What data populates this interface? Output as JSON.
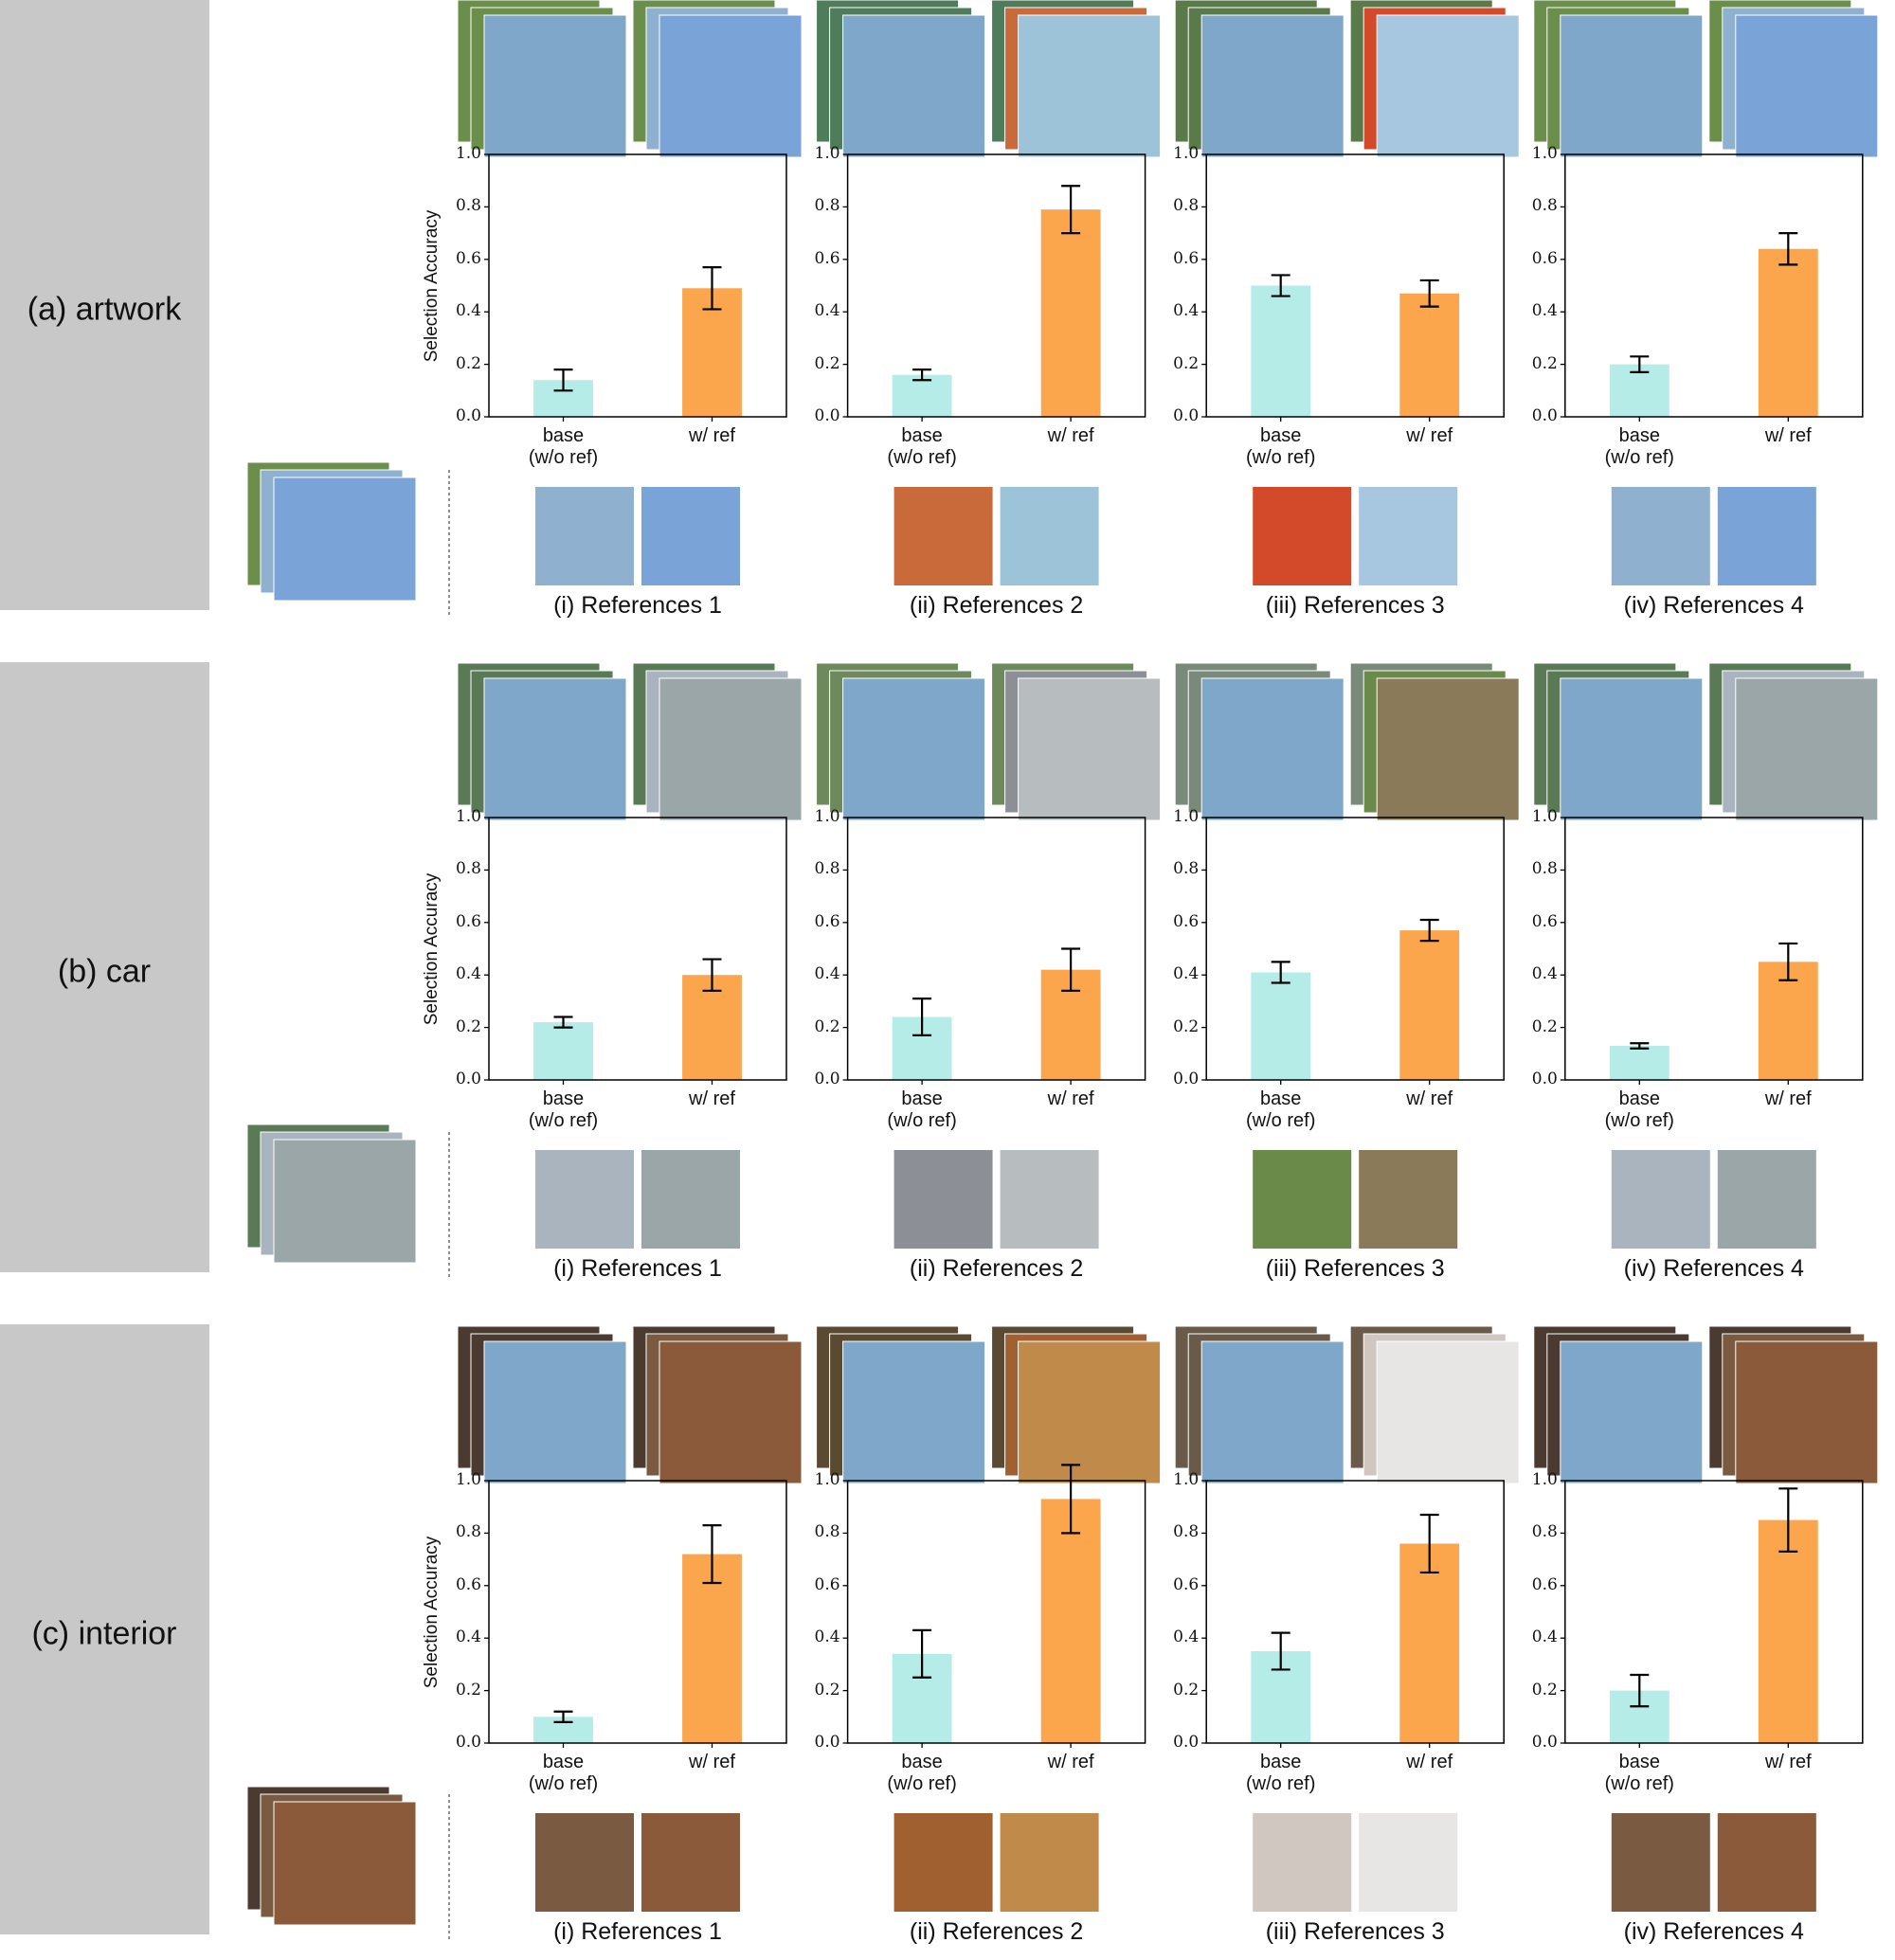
{
  "rows": [
    {
      "label": "(a) artwork"
    },
    {
      "label": "(b) car"
    },
    {
      "label": "(c) interior"
    }
  ],
  "chart_data": [
    {
      "type": "bar",
      "ylabel": "Selection Accuracy",
      "caption": "(i) References 1",
      "categories": [
        "base\n(w/o ref)",
        "w/ ref"
      ],
      "values": [
        0.14,
        0.49
      ],
      "errors": [
        0.04,
        0.08
      ],
      "colors": [
        "#b5ece7",
        "#fba54d"
      ],
      "ylim": [
        0,
        1
      ],
      "yticks": [
        {
          "value": 0,
          "label": "0.0"
        },
        0.2,
        0.4,
        0.6,
        0.8,
        {
          "value": 1,
          "label": "1.0"
        }
      ]
    },
    {
      "type": "bar",
      "caption": "(ii) References 2",
      "categories": [
        "base\n(w/o ref)",
        "w/ ref"
      ],
      "values": [
        0.16,
        0.79
      ],
      "errors": [
        0.02,
        0.09
      ],
      "colors": [
        "#b5ece7",
        "#fba54d"
      ],
      "ylim": [
        0,
        1
      ],
      "yticks": [
        {
          "value": 0,
          "label": "0.0"
        },
        0.2,
        0.4,
        0.6,
        0.8,
        {
          "value": 1,
          "label": "1.0"
        }
      ]
    },
    {
      "type": "bar",
      "caption": "(iii) References 3",
      "categories": [
        "base\n(w/o ref)",
        "w/ ref"
      ],
      "values": [
        0.5,
        0.47
      ],
      "errors": [
        0.04,
        0.05
      ],
      "colors": [
        "#b5ece7",
        "#fba54d"
      ],
      "ylim": [
        0,
        1
      ],
      "yticks": [
        {
          "value": 0,
          "label": "0.0"
        },
        0.2,
        0.4,
        0.6,
        0.8,
        {
          "value": 1,
          "label": "1.0"
        }
      ]
    },
    {
      "type": "bar",
      "caption": "(iv) References 4",
      "categories": [
        "base\n(w/o ref)",
        "w/ ref"
      ],
      "values": [
        0.2,
        0.64
      ],
      "errors": [
        0.03,
        0.06
      ],
      "colors": [
        "#b5ece7",
        "#fba54d"
      ],
      "ylim": [
        0,
        1
      ],
      "yticks": [
        {
          "value": 0,
          "label": "0.0"
        },
        0.2,
        0.4,
        0.6,
        0.8,
        {
          "value": 1,
          "label": "1.0"
        }
      ]
    },
    {
      "type": "bar",
      "ylabel": "Selection Accuracy",
      "caption": "(i) References 1",
      "categories": [
        "base\n(w/o ref)",
        "w/ ref"
      ],
      "values": [
        0.22,
        0.4
      ],
      "errors": [
        0.02,
        0.06
      ],
      "colors": [
        "#b5ece7",
        "#fba54d"
      ],
      "ylim": [
        0,
        1
      ],
      "yticks": [
        {
          "value": 0,
          "label": "0.0"
        },
        0.2,
        0.4,
        0.6,
        0.8,
        {
          "value": 1,
          "label": "1.0"
        }
      ]
    },
    {
      "type": "bar",
      "caption": "(ii) References 2",
      "categories": [
        "base\n(w/o ref)",
        "w/ ref"
      ],
      "values": [
        0.24,
        0.42
      ],
      "errors": [
        0.07,
        0.08
      ],
      "colors": [
        "#b5ece7",
        "#fba54d"
      ],
      "ylim": [
        0,
        1
      ],
      "yticks": [
        {
          "value": 0,
          "label": "0.0"
        },
        0.2,
        0.4,
        0.6,
        0.8,
        {
          "value": 1,
          "label": "1.0"
        }
      ]
    },
    {
      "type": "bar",
      "caption": "(iii) References 3",
      "categories": [
        "base\n(w/o ref)",
        "w/ ref"
      ],
      "values": [
        0.41,
        0.57
      ],
      "errors": [
        0.04,
        0.04
      ],
      "colors": [
        "#b5ece7",
        "#fba54d"
      ],
      "ylim": [
        0,
        1
      ],
      "yticks": [
        {
          "value": 0,
          "label": "0.0"
        },
        0.2,
        0.4,
        0.6,
        0.8,
        {
          "value": 1,
          "label": "1.0"
        }
      ]
    },
    {
      "type": "bar",
      "caption": "(iv) References 4",
      "categories": [
        "base\n(w/o ref)",
        "w/ ref"
      ],
      "values": [
        0.13,
        0.45
      ],
      "errors": [
        0.01,
        0.07
      ],
      "colors": [
        "#b5ece7",
        "#fba54d"
      ],
      "ylim": [
        0,
        1
      ],
      "yticks": [
        {
          "value": 0,
          "label": "0.0"
        },
        0.2,
        0.4,
        0.6,
        0.8,
        {
          "value": 1,
          "label": "1.0"
        }
      ]
    },
    {
      "type": "bar",
      "ylabel": "Selection Accuracy",
      "caption": "(i) References 1",
      "categories": [
        "base\n(w/o ref)",
        "w/ ref"
      ],
      "values": [
        0.1,
        0.72
      ],
      "errors": [
        0.02,
        0.11
      ],
      "colors": [
        "#b5ece7",
        "#fba54d"
      ],
      "ylim": [
        0,
        1
      ],
      "yticks": [
        {
          "value": 0,
          "label": "0.0"
        },
        0.2,
        0.4,
        0.6,
        0.8,
        {
          "value": 1,
          "label": "1.0"
        }
      ]
    },
    {
      "type": "bar",
      "caption": "(ii) References 2",
      "categories": [
        "base\n(w/o ref)",
        "w/ ref"
      ],
      "values": [
        0.34,
        0.93
      ],
      "errors": [
        0.09,
        0.13
      ],
      "colors": [
        "#b5ece7",
        "#fba54d"
      ],
      "ylim": [
        0,
        1
      ],
      "yticks": [
        {
          "value": 0,
          "label": "0.0"
        },
        0.2,
        0.4,
        0.6,
        0.8,
        {
          "value": 1,
          "label": "1.0"
        }
      ]
    },
    {
      "type": "bar",
      "caption": "(iii) References 3",
      "categories": [
        "base\n(w/o ref)",
        "w/ ref"
      ],
      "values": [
        0.35,
        0.76
      ],
      "errors": [
        0.07,
        0.11
      ],
      "colors": [
        "#b5ece7",
        "#fba54d"
      ],
      "ylim": [
        0,
        1
      ],
      "yticks": [
        {
          "value": 0,
          "label": "0.0"
        },
        0.2,
        0.4,
        0.6,
        0.8,
        {
          "value": 1,
          "label": "1.0"
        }
      ]
    },
    {
      "type": "bar",
      "caption": "(iv) References 4",
      "categories": [
        "base\n(w/o ref)",
        "w/ ref"
      ],
      "values": [
        0.2,
        0.85
      ],
      "errors": [
        0.06,
        0.12
      ],
      "colors": [
        "#b5ece7",
        "#fba54d"
      ],
      "ylim": [
        0,
        1
      ],
      "yticks": [
        {
          "value": 0,
          "label": "0.0"
        },
        0.2,
        0.4,
        0.6,
        0.8,
        {
          "value": 1,
          "label": "1.0"
        }
      ]
    }
  ]
}
